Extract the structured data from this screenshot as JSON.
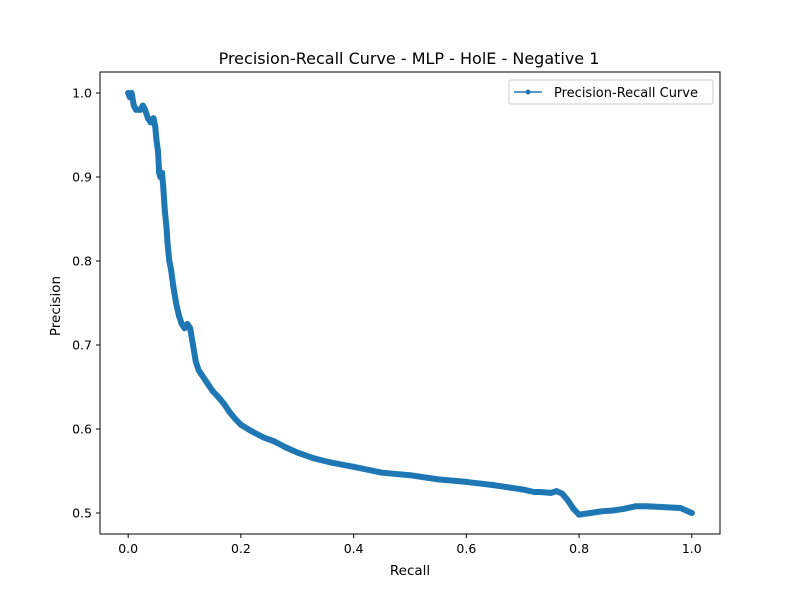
{
  "chart_data": {
    "type": "line",
    "title": "Precision-Recall Curve - MLP - HolE - Negative 1",
    "xlabel": "Recall",
    "ylabel": "Precision",
    "xlim": [
      -0.05,
      1.05
    ],
    "ylim": [
      0.475,
      1.025
    ],
    "xticks": [
      0.0,
      0.2,
      0.4,
      0.6,
      0.8,
      1.0
    ],
    "xtick_labels": [
      "0.0",
      "0.2",
      "0.4",
      "0.6",
      "0.8",
      "1.0"
    ],
    "yticks": [
      0.5,
      0.6,
      0.7,
      0.8,
      0.9,
      1.0
    ],
    "ytick_labels": [
      "0.5",
      "0.6",
      "0.7",
      "0.8",
      "0.9",
      "1.0"
    ],
    "grid": false,
    "legend": {
      "position": "top-right",
      "entries": [
        "Precision-Recall Curve"
      ]
    },
    "series": [
      {
        "name": "Precision-Recall Curve",
        "color": "#1f77b4",
        "marker": "dot",
        "x": [
          0.0,
          0.003,
          0.006,
          0.01,
          0.014,
          0.018,
          0.022,
          0.026,
          0.03,
          0.035,
          0.04,
          0.045,
          0.048,
          0.05,
          0.053,
          0.055,
          0.057,
          0.058,
          0.06,
          0.062,
          0.065,
          0.068,
          0.07,
          0.073,
          0.076,
          0.08,
          0.085,
          0.09,
          0.095,
          0.1,
          0.105,
          0.11,
          0.115,
          0.12,
          0.125,
          0.13,
          0.14,
          0.15,
          0.16,
          0.17,
          0.18,
          0.19,
          0.2,
          0.22,
          0.24,
          0.26,
          0.28,
          0.3,
          0.33,
          0.36,
          0.4,
          0.45,
          0.5,
          0.55,
          0.6,
          0.65,
          0.67,
          0.68,
          0.7,
          0.72,
          0.73,
          0.75,
          0.76,
          0.77,
          0.78,
          0.79,
          0.8,
          0.82,
          0.84,
          0.86,
          0.88,
          0.9,
          0.92,
          0.95,
          0.98,
          1.0
        ],
        "y": [
          1.0,
          0.995,
          1.0,
          0.985,
          0.98,
          0.98,
          0.98,
          0.985,
          0.98,
          0.97,
          0.965,
          0.97,
          0.96,
          0.945,
          0.93,
          0.905,
          0.9,
          0.9,
          0.905,
          0.89,
          0.86,
          0.84,
          0.82,
          0.8,
          0.79,
          0.77,
          0.75,
          0.735,
          0.725,
          0.72,
          0.725,
          0.72,
          0.7,
          0.68,
          0.67,
          0.665,
          0.655,
          0.645,
          0.638,
          0.63,
          0.62,
          0.612,
          0.605,
          0.597,
          0.59,
          0.585,
          0.578,
          0.572,
          0.565,
          0.56,
          0.555,
          0.548,
          0.545,
          0.54,
          0.537,
          0.533,
          0.531,
          0.53,
          0.528,
          0.525,
          0.525,
          0.524,
          0.526,
          0.523,
          0.515,
          0.505,
          0.498,
          0.5,
          0.502,
          0.503,
          0.505,
          0.508,
          0.508,
          0.507,
          0.506,
          0.5
        ]
      }
    ]
  }
}
